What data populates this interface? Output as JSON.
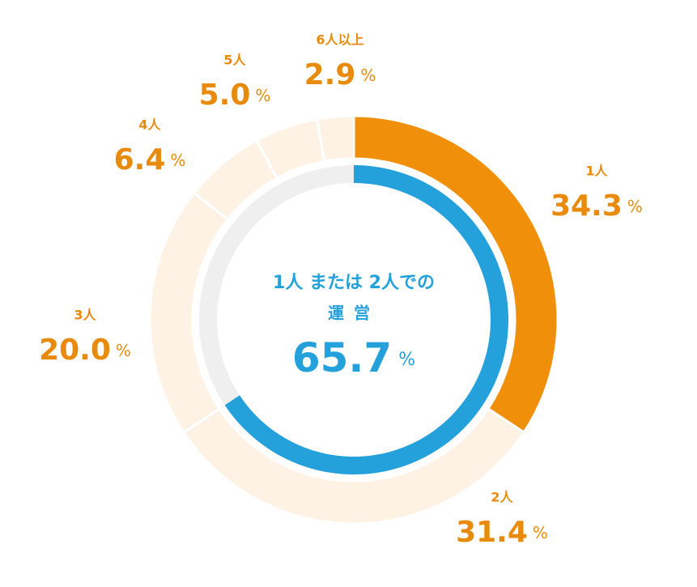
{
  "chart_data": {
    "type": "donut",
    "categories": [
      "1人",
      "2人",
      "3人",
      "4人",
      "5人",
      "6人以上"
    ],
    "values": [
      34.3,
      31.4,
      20.0,
      6.4,
      5.0,
      2.9
    ],
    "value_labels": [
      "34.3",
      "31.4",
      "20.0",
      "6.4",
      "5.0",
      "2.9"
    ],
    "unit": "%",
    "colors": [
      "#f0900a",
      "#fdf2e4",
      "#fdf2e4",
      "#fdf2e4",
      "#fdf2e4",
      "#fdf2e4"
    ],
    "label_color": "#e88a0c",
    "inner": {
      "lines": [
        "1人 または 2人での",
        "運営"
      ],
      "value": 65.7,
      "value_label": "65.7",
      "color": "#24a1da",
      "track_color": "#efefef"
    }
  }
}
